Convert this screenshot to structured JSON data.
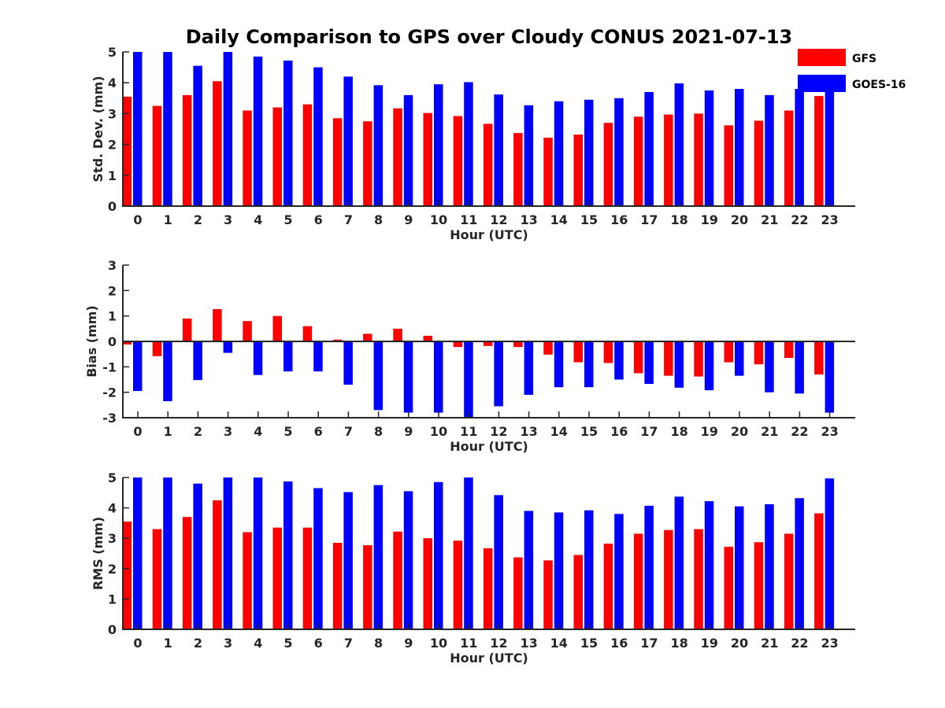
{
  "title": "Daily Comparison to GPS over Cloudy CONUS 2021-07-13",
  "legend": [
    {
      "label": "GFS",
      "color": "#ff0000"
    },
    {
      "label": "GOES-16",
      "color": "#0000ff"
    }
  ],
  "chart_data": [
    {
      "type": "bar",
      "ylabel": "Std. Dev. (mm)",
      "xlabel": "Hour (UTC)",
      "ylim": [
        0,
        5
      ],
      "yticks": [
        0,
        1,
        2,
        3,
        4,
        5
      ],
      "categories": [
        "0",
        "1",
        "2",
        "3",
        "4",
        "5",
        "6",
        "7",
        "8",
        "9",
        "10",
        "11",
        "12",
        "13",
        "14",
        "15",
        "16",
        "17",
        "18",
        "19",
        "20",
        "21",
        "22",
        "23"
      ],
      "series": [
        {
          "name": "GFS",
          "color": "#ff0000",
          "values": [
            3.55,
            3.25,
            3.6,
            4.05,
            3.1,
            3.2,
            3.3,
            2.85,
            2.75,
            3.17,
            3.02,
            2.92,
            2.67,
            2.37,
            2.22,
            2.32,
            2.7,
            2.9,
            2.97,
            3.0,
            2.62,
            2.77,
            3.1,
            3.57
          ]
        },
        {
          "name": "GOES-16",
          "color": "#0000ff",
          "values": [
            5.0,
            5.0,
            4.55,
            5.0,
            4.85,
            4.72,
            4.5,
            4.2,
            3.92,
            3.6,
            3.95,
            4.02,
            3.62,
            3.27,
            3.4,
            3.45,
            3.5,
            3.7,
            3.98,
            3.75,
            3.8,
            3.6,
            3.8,
            3.8
          ]
        }
      ]
    },
    {
      "type": "bar",
      "ylabel": "Bias (mm)",
      "xlabel": "Hour (UTC)",
      "ylim": [
        -3,
        3
      ],
      "yticks": [
        -3,
        -2,
        -1,
        0,
        1,
        2,
        3
      ],
      "zero_line": true,
      "categories": [
        "0",
        "1",
        "2",
        "3",
        "4",
        "5",
        "6",
        "7",
        "8",
        "9",
        "10",
        "11",
        "12",
        "13",
        "14",
        "15",
        "16",
        "17",
        "18",
        "19",
        "20",
        "21",
        "22",
        "23"
      ],
      "series": [
        {
          "name": "GFS",
          "color": "#ff0000",
          "values": [
            -0.12,
            -0.58,
            0.9,
            1.27,
            0.8,
            1.0,
            0.6,
            0.07,
            0.3,
            0.5,
            0.22,
            -0.22,
            -0.18,
            -0.22,
            -0.52,
            -0.82,
            -0.85,
            -1.25,
            -1.35,
            -1.38,
            -0.82,
            -0.9,
            -0.65,
            -1.3
          ]
        },
        {
          "name": "GOES-16",
          "color": "#0000ff",
          "values": [
            -1.95,
            -2.35,
            -1.52,
            -0.45,
            -1.32,
            -1.18,
            -1.18,
            -1.7,
            -2.7,
            -2.8,
            -2.8,
            -3.0,
            -2.55,
            -2.1,
            -1.8,
            -1.8,
            -1.5,
            -1.67,
            -1.82,
            -1.92,
            -1.35,
            -2.0,
            -2.05,
            -2.8
          ]
        }
      ]
    },
    {
      "type": "bar",
      "ylabel": "RMS (mm)",
      "xlabel": "Hour (UTC)",
      "ylim": [
        0,
        5
      ],
      "yticks": [
        0,
        1,
        2,
        3,
        4,
        5
      ],
      "categories": [
        "0",
        "1",
        "2",
        "3",
        "4",
        "5",
        "6",
        "7",
        "8",
        "9",
        "10",
        "11",
        "12",
        "13",
        "14",
        "15",
        "16",
        "17",
        "18",
        "19",
        "20",
        "21",
        "22",
        "23"
      ],
      "series": [
        {
          "name": "GFS",
          "color": "#ff0000",
          "values": [
            3.55,
            3.3,
            3.7,
            4.25,
            3.2,
            3.35,
            3.35,
            2.85,
            2.77,
            3.22,
            3.0,
            2.92,
            2.67,
            2.37,
            2.27,
            2.45,
            2.82,
            3.15,
            3.27,
            3.3,
            2.72,
            2.87,
            3.15,
            3.82
          ]
        },
        {
          "name": "GOES-16",
          "color": "#0000ff",
          "values": [
            5.0,
            5.0,
            4.8,
            5.0,
            5.0,
            4.87,
            4.65,
            4.52,
            4.75,
            4.55,
            4.85,
            5.0,
            4.42,
            3.9,
            3.85,
            3.92,
            3.8,
            4.07,
            4.37,
            4.22,
            4.05,
            4.12,
            4.32,
            4.97
          ]
        }
      ]
    }
  ]
}
